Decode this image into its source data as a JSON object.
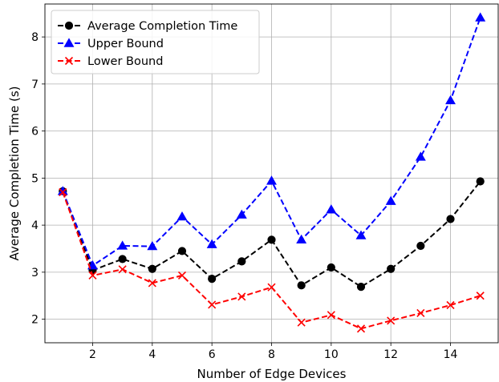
{
  "chart_data": {
    "type": "line",
    "xlabel": "Number of Edge Devices",
    "ylabel": "Average Completion Time (s)",
    "xlim": [
      0.4,
      15.6
    ],
    "ylim": [
      1.5,
      8.7
    ],
    "x_ticks": [
      2,
      4,
      6,
      8,
      10,
      12,
      14
    ],
    "y_ticks": [
      2,
      3,
      4,
      5,
      6,
      7,
      8
    ],
    "grid": true,
    "legend_position": "top-left",
    "x": [
      1,
      2,
      3,
      4,
      5,
      6,
      7,
      8,
      9,
      10,
      11,
      12,
      13,
      14,
      15
    ],
    "series": [
      {
        "name": "Average Completion Time",
        "color": "#000000",
        "marker": "circle",
        "line_style": "dashed",
        "values": [
          4.72,
          3.04,
          3.28,
          3.07,
          3.45,
          2.86,
          3.23,
          3.69,
          2.72,
          3.1,
          2.69,
          3.07,
          3.56,
          4.13,
          4.93
        ]
      },
      {
        "name": "Upper Bound",
        "color": "#0000ff",
        "marker": "triangle",
        "line_style": "dashed",
        "values": [
          4.72,
          3.14,
          3.56,
          3.55,
          4.18,
          3.59,
          4.22,
          4.94,
          3.69,
          4.33,
          3.78,
          4.51,
          5.45,
          6.65,
          8.41
        ]
      },
      {
        "name": "Lower Bound",
        "color": "#ff0000",
        "marker": "x",
        "line_style": "dashed",
        "values": [
          4.7,
          2.93,
          3.06,
          2.77,
          2.93,
          2.31,
          2.48,
          2.68,
          1.93,
          2.09,
          1.8,
          1.97,
          2.13,
          2.3,
          2.5
        ]
      }
    ]
  }
}
